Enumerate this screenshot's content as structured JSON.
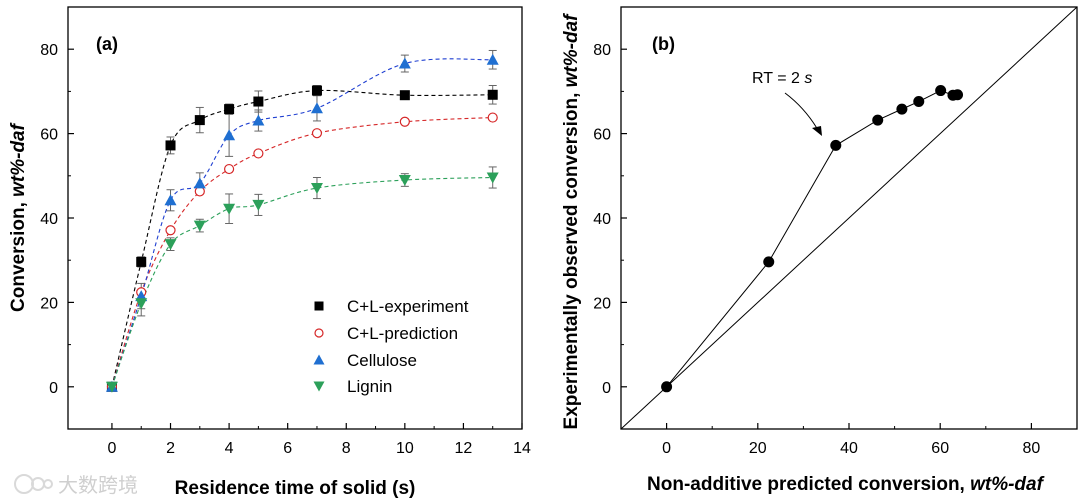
{
  "chart_data": [
    {
      "type": "scatter",
      "panel_label": "(a)",
      "xlabel": "Residence time of solid (s)",
      "ylabel_main": "Conversion, ",
      "ylabel_italic": "wt%-daf",
      "xlim": [
        -1.5,
        14
      ],
      "ylim": [
        -10,
        90
      ],
      "xticks": [
        0,
        2,
        4,
        6,
        8,
        10,
        12,
        14
      ],
      "yticks": [
        0,
        20,
        40,
        60,
        80
      ],
      "legend_position": "lower-right",
      "series": [
        {
          "name": "C+L-experiment",
          "marker": "square",
          "color": "#000000",
          "x": [
            0,
            1,
            2,
            3,
            4,
            5,
            7,
            10,
            13
          ],
          "y": [
            0,
            29.6,
            57.2,
            63.2,
            65.8,
            67.6,
            70.2,
            69.1,
            69.2
          ],
          "err": [
            0,
            1.2,
            2,
            3,
            1.2,
            2.5,
            1.2,
            0.8,
            2.2
          ],
          "fit_color": "#000000"
        },
        {
          "name": "C+L-prediction",
          "marker": "circle-open",
          "color": "#d62728",
          "x": [
            0,
            1,
            2,
            3,
            4,
            5,
            7,
            10,
            13
          ],
          "y": [
            0,
            22.4,
            37.1,
            46.3,
            51.6,
            55.3,
            60.1,
            62.8,
            63.8
          ],
          "err": [
            0,
            0,
            0,
            0,
            0,
            0,
            0,
            0,
            0
          ],
          "fit_color": "#d62728"
        },
        {
          "name": "Cellulose",
          "marker": "triangle-up",
          "color": "#1f6fd1",
          "x": [
            0,
            1,
            2,
            3,
            4,
            5,
            7,
            10,
            13
          ],
          "y": [
            0,
            21.5,
            44.2,
            48.2,
            59.6,
            63.1,
            66.0,
            76.6,
            77.5
          ],
          "err": [
            0,
            3,
            2.5,
            2.5,
            5,
            2.5,
            3,
            2,
            2.2
          ],
          "fit_color": "#1f3fd1"
        },
        {
          "name": "Lignin",
          "marker": "triangle-down",
          "color": "#2ca05a",
          "x": [
            0,
            1,
            2,
            3,
            4,
            5,
            7,
            10,
            13
          ],
          "y": [
            0,
            19.8,
            33.8,
            38.2,
            42.2,
            43.1,
            47.1,
            49.0,
            49.6
          ],
          "err": [
            0,
            3,
            1.5,
            1.5,
            3.5,
            2.5,
            2.5,
            1.5,
            2.5
          ],
          "fit_color": "#2ca05a"
        }
      ]
    },
    {
      "type": "scatter",
      "panel_label": "(b)",
      "xlabel_main": "Non-additive predicted conversion, ",
      "xlabel_italic": "wt%-daf",
      "ylabel_main": "Experimentally observed conversion, ",
      "ylabel_italic": "wt%-daf",
      "xlim": [
        -10,
        90
      ],
      "ylim": [
        -10,
        90
      ],
      "xticks": [
        0,
        20,
        40,
        60,
        80
      ],
      "yticks": [
        0,
        20,
        40,
        60,
        80
      ],
      "annotation_main": "RT = 2 ",
      "annotation_italic": "s",
      "parity_line": true,
      "points": {
        "x": [
          0,
          22.4,
          37.1,
          46.3,
          51.6,
          55.3,
          60.1,
          62.8,
          63.8
        ],
        "y": [
          0,
          29.6,
          57.2,
          63.2,
          65.8,
          67.6,
          70.2,
          69.1,
          69.2
        ]
      }
    }
  ],
  "watermark": {
    "icon": "watermark-logo-icon",
    "text": "大数跨境"
  }
}
